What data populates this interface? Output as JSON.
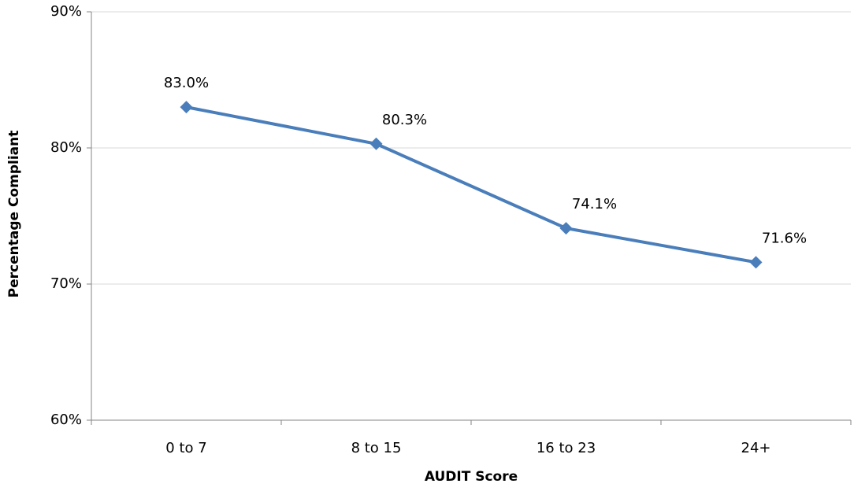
{
  "chart_data": {
    "type": "line",
    "categories": [
      "0 to 7",
      "8 to 15",
      "16 to 23",
      "24+"
    ],
    "values": [
      83.0,
      80.3,
      74.1,
      71.6
    ],
    "value_labels": [
      "83.0%",
      "80.3%",
      "74.1%",
      "71.6%"
    ],
    "color": "#4a7ebb",
    "x_label": "AUDIT Score",
    "y_label": "Percentage Compliant",
    "ylim": [
      60,
      90
    ],
    "yticks": [
      {
        "value": 60,
        "label": "60%"
      },
      {
        "value": 70,
        "label": "70%"
      },
      {
        "value": 80,
        "label": "80%"
      },
      {
        "value": 90,
        "label": "90%"
      }
    ],
    "grid": true
  }
}
